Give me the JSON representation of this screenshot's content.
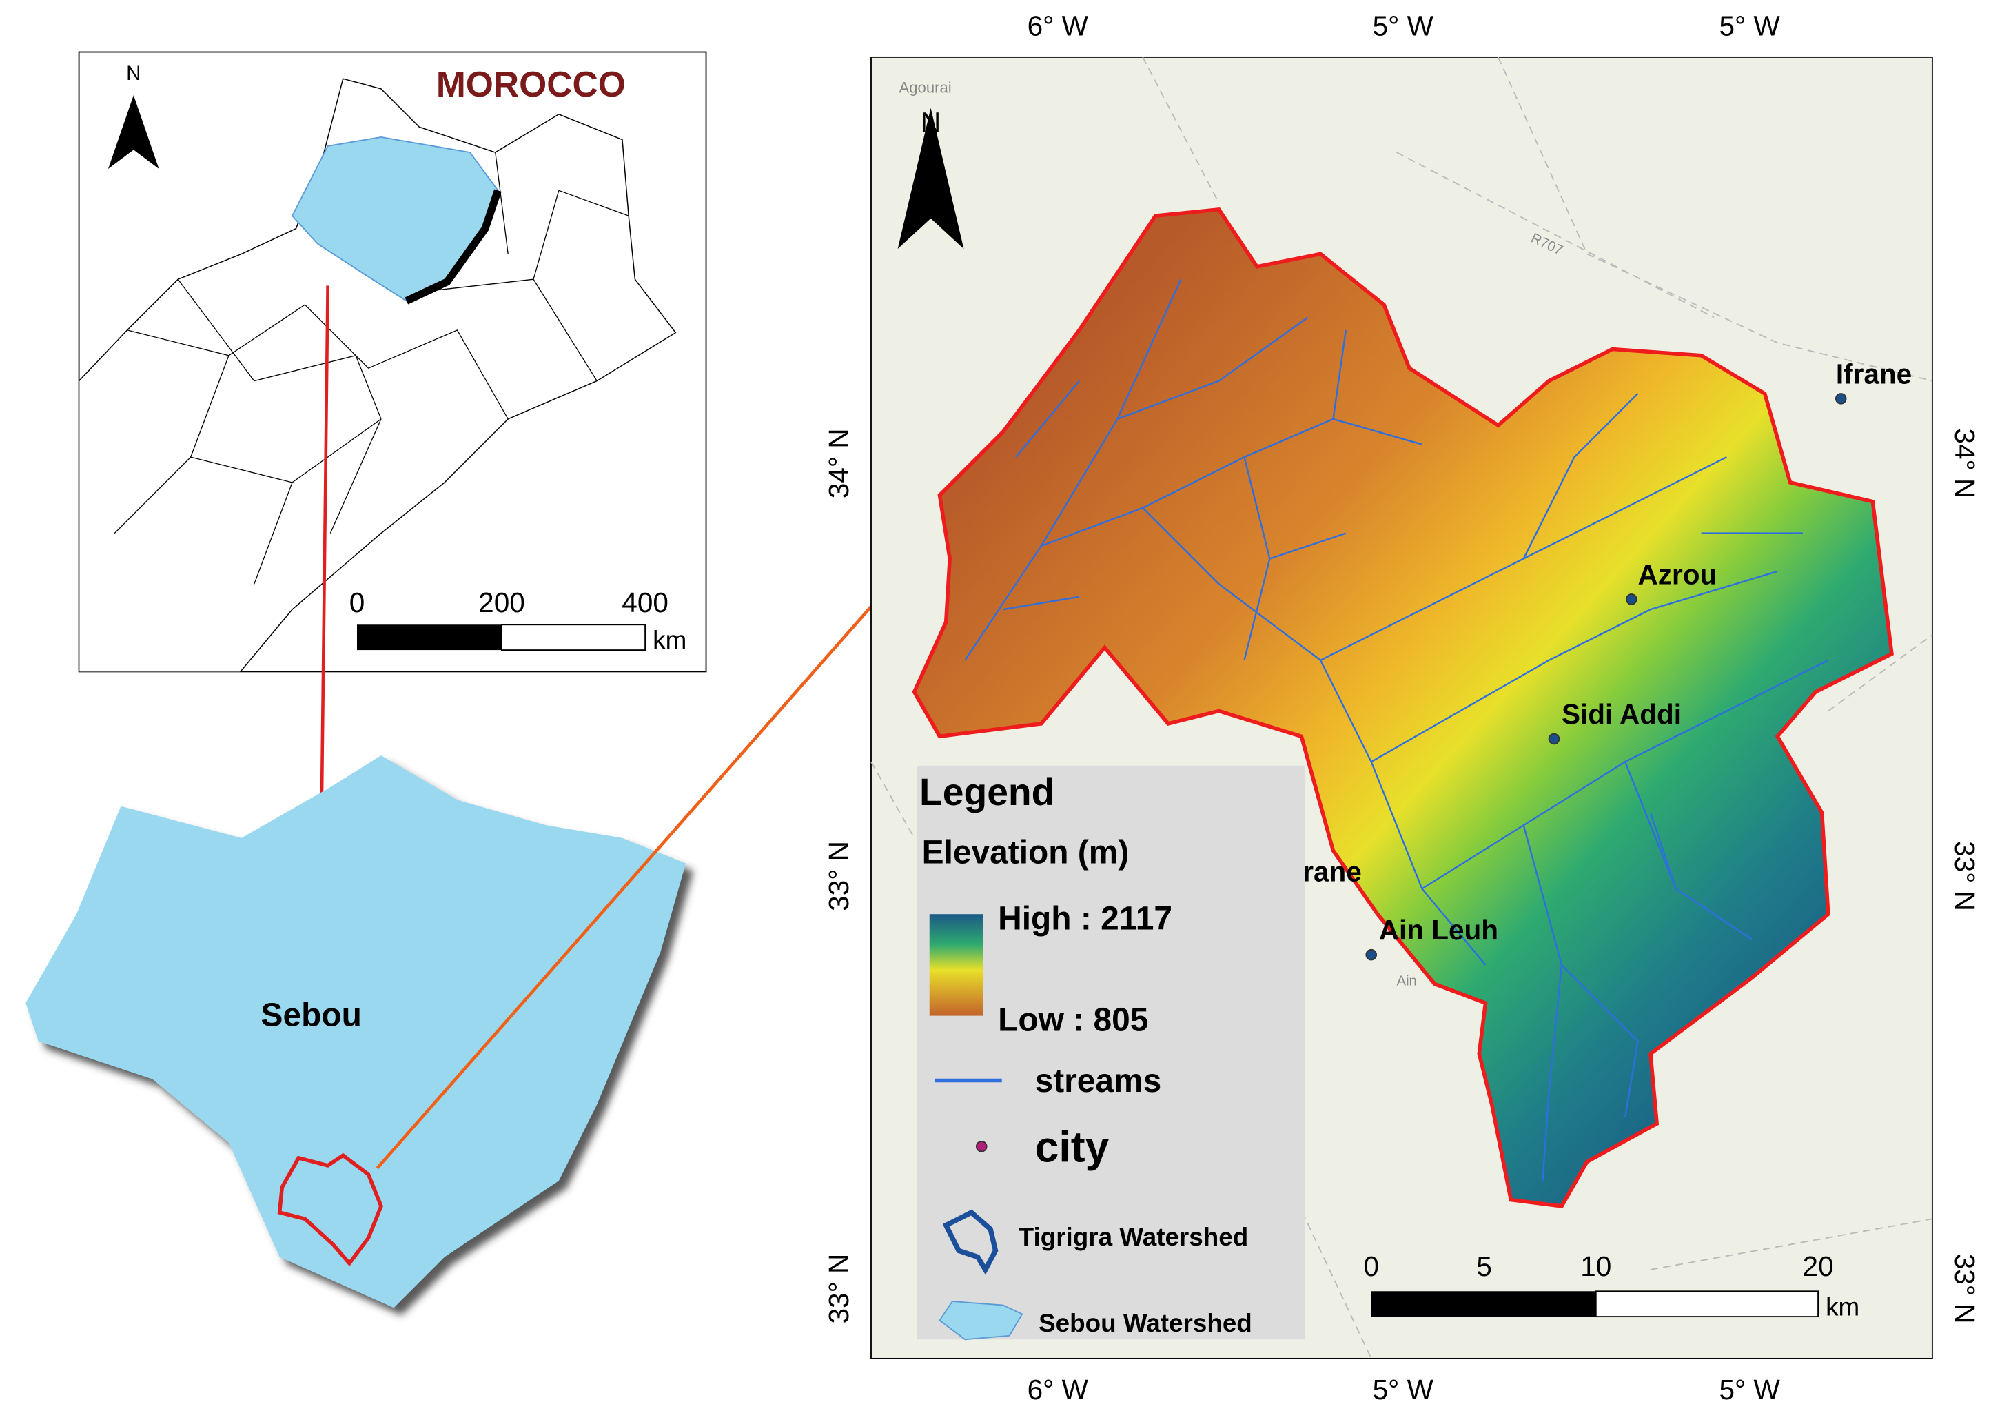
{
  "inset_map": {
    "north": "N",
    "title": "MOROCCO",
    "scale_ticks": [
      "0",
      "200",
      "400"
    ],
    "scale_unit": "km"
  },
  "region_map": {
    "label": "Sebou"
  },
  "main_map": {
    "north": "N",
    "top_ticks": [
      "6° W",
      "5° W",
      "5° W"
    ],
    "bottom_ticks": [
      "6° W",
      "5° W",
      "5° W"
    ],
    "left_ticks": [
      "34° N",
      "33° N",
      "33° N"
    ],
    "right_ticks": [
      "34° N",
      "33° N",
      "33° N"
    ],
    "background_labels": [
      "Agourai",
      "R707",
      "Ain"
    ],
    "cities": [
      "Ifrane",
      "Azrou",
      "Sidi Addi",
      "Ain Leuh"
    ],
    "partial_label": "rane",
    "scale_ticks": [
      "0",
      "5",
      "10",
      "20"
    ],
    "scale_unit": "km",
    "legend": {
      "title": "Legend",
      "elevation_title": "Elevation (m)",
      "high": "High : 2117",
      "low": "Low : 805",
      "streams": "streams",
      "city": "city",
      "tigrigra": "Tigrigra Watershed",
      "sebou": "Sebou Watershed"
    }
  }
}
